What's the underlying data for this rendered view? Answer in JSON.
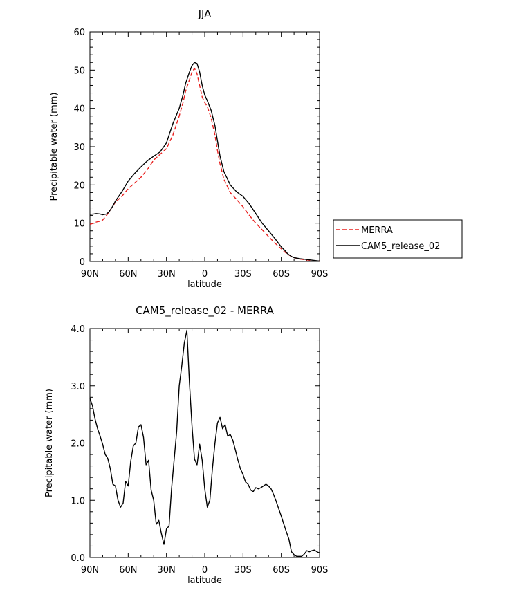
{
  "chart_data": [
    {
      "type": "line",
      "title": "JJA",
      "xlabel": "latitude",
      "ylabel": "Precipitable water (mm)",
      "xlim": [
        90,
        -90
      ],
      "ylim": [
        0,
        60
      ],
      "xticks": [
        90,
        60,
        30,
        0,
        -30,
        -60,
        -90
      ],
      "xtick_labels": [
        "90N",
        "60N",
        "30N",
        "0",
        "30S",
        "60S",
        "90S"
      ],
      "yticks": [
        0,
        10,
        20,
        30,
        40,
        50,
        60
      ],
      "ytick_labels": [
        "0",
        "10",
        "20",
        "30",
        "40",
        "50",
        "60"
      ],
      "legend": {
        "placement": "right",
        "entries": [
          "MERRA",
          "CAM5_release_02"
        ]
      },
      "series": [
        {
          "name": "MERRA",
          "color": "#e8201e",
          "dash": "dashed",
          "x": [
            90,
            87,
            85,
            82,
            80,
            77,
            75,
            72,
            70,
            65,
            60,
            55,
            50,
            45,
            40,
            35,
            30,
            25,
            20,
            17,
            15,
            12,
            10,
            8,
            6,
            4,
            2,
            0,
            -2,
            -5,
            -8,
            -10,
            -12,
            -15,
            -20,
            -25,
            -30,
            -35,
            -40,
            -45,
            -50,
            -55,
            -60,
            -63,
            -65,
            -68,
            -70,
            -75,
            -80,
            -85,
            -90
          ],
          "values": [
            9.7,
            10.0,
            10.3,
            10.5,
            10.8,
            12.0,
            13.0,
            14.5,
            15.5,
            17.0,
            19.0,
            20.5,
            22.0,
            24.0,
            26.5,
            28.0,
            29.5,
            33.0,
            38.0,
            41.5,
            44.5,
            47.5,
            49.5,
            50.5,
            49.0,
            46.0,
            43.0,
            41.5,
            40.5,
            37.5,
            33.0,
            29.0,
            25.5,
            21.5,
            18.0,
            16.2,
            14.3,
            12.0,
            10.0,
            8.3,
            6.5,
            4.8,
            3.3,
            2.4,
            1.9,
            1.3,
            1.0,
            0.6,
            0.4,
            0.2,
            0.1
          ]
        },
        {
          "name": "CAM5_release_02",
          "color": "#000000",
          "dash": "solid",
          "x": [
            90,
            87,
            85,
            82,
            80,
            77,
            75,
            72,
            70,
            65,
            60,
            55,
            50,
            45,
            40,
            35,
            30,
            25,
            20,
            17,
            15,
            12,
            10,
            8,
            6,
            4,
            2,
            0,
            -2,
            -5,
            -8,
            -10,
            -12,
            -15,
            -20,
            -25,
            -30,
            -35,
            -40,
            -45,
            -50,
            -55,
            -60,
            -63,
            -65,
            -68,
            -70,
            -75,
            -80,
            -85,
            -90
          ],
          "values": [
            12.3,
            12.4,
            12.5,
            12.4,
            12.2,
            12.4,
            13.0,
            14.5,
            15.8,
            18.2,
            21.0,
            23.0,
            24.7,
            26.3,
            27.5,
            28.6,
            31.0,
            36.0,
            40.0,
            43.5,
            46.5,
            49.5,
            51.2,
            52.0,
            51.7,
            49.5,
            46.0,
            43.5,
            42.0,
            39.5,
            35.5,
            31.5,
            27.5,
            23.5,
            20.0,
            18.2,
            17.0,
            15.0,
            12.5,
            10.0,
            8.0,
            6.0,
            3.8,
            2.8,
            2.0,
            1.3,
            1.0,
            0.7,
            0.5,
            0.3,
            0.1
          ]
        }
      ]
    },
    {
      "type": "line",
      "title": "CAM5_release_02 - MERRA",
      "xlabel": "latitude",
      "ylabel": "Precipitable water (mm)",
      "xlim": [
        90,
        -90
      ],
      "ylim": [
        0,
        4
      ],
      "xticks": [
        90,
        60,
        30,
        0,
        -30,
        -60,
        -90
      ],
      "xtick_labels": [
        "90N",
        "60N",
        "30N",
        "0",
        "30S",
        "60S",
        "90S"
      ],
      "yticks": [
        0,
        1,
        2,
        3,
        4
      ],
      "ytick_labels": [
        "0.0",
        "1.0",
        "2.0",
        "3.0",
        "4.0"
      ],
      "series": [
        {
          "name": "CAM5_release_02 - MERRA",
          "color": "#000000",
          "dash": "solid",
          "x": [
            90,
            88,
            86,
            84,
            82,
            80,
            78,
            76,
            74,
            72,
            70,
            68,
            66,
            64,
            62,
            60,
            58,
            56,
            54,
            52,
            50,
            48,
            46,
            44,
            42,
            40,
            38,
            36,
            34,
            32,
            30,
            28,
            26,
            24,
            22,
            20,
            18,
            16,
            14,
            12,
            10,
            8,
            6,
            4,
            2,
            0,
            -2,
            -4,
            -6,
            -8,
            -10,
            -12,
            -14,
            -16,
            -18,
            -20,
            -22,
            -24,
            -26,
            -28,
            -30,
            -32,
            -34,
            -36,
            -38,
            -40,
            -42,
            -44,
            -46,
            -48,
            -50,
            -52,
            -54,
            -56,
            -58,
            -60,
            -62,
            -64,
            -66,
            -68,
            -70,
            -72,
            -74,
            -76,
            -78,
            -80,
            -82,
            -84,
            -86,
            -88,
            -90
          ],
          "values": [
            2.78,
            2.65,
            2.42,
            2.25,
            2.12,
            1.98,
            1.8,
            1.73,
            1.55,
            1.28,
            1.25,
            1.0,
            0.88,
            0.95,
            1.33,
            1.25,
            1.68,
            1.95,
            2.0,
            2.28,
            2.32,
            2.1,
            1.62,
            1.7,
            1.18,
            1.0,
            0.58,
            0.65,
            0.42,
            0.23,
            0.5,
            0.55,
            1.2,
            1.7,
            2.2,
            3.0,
            3.35,
            3.75,
            3.97,
            3.05,
            2.3,
            1.72,
            1.62,
            1.98,
            1.7,
            1.2,
            0.88,
            1.0,
            1.55,
            2.0,
            2.35,
            2.45,
            2.25,
            2.32,
            2.12,
            2.15,
            2.05,
            1.88,
            1.7,
            1.55,
            1.45,
            1.32,
            1.28,
            1.18,
            1.15,
            1.22,
            1.2,
            1.22,
            1.25,
            1.28,
            1.25,
            1.2,
            1.1,
            0.98,
            0.85,
            0.72,
            0.58,
            0.45,
            0.32,
            0.1,
            0.05,
            0.02,
            0.02,
            0.02,
            0.06,
            0.12,
            0.1,
            0.12,
            0.13,
            0.1,
            0.08
          ]
        }
      ]
    }
  ]
}
